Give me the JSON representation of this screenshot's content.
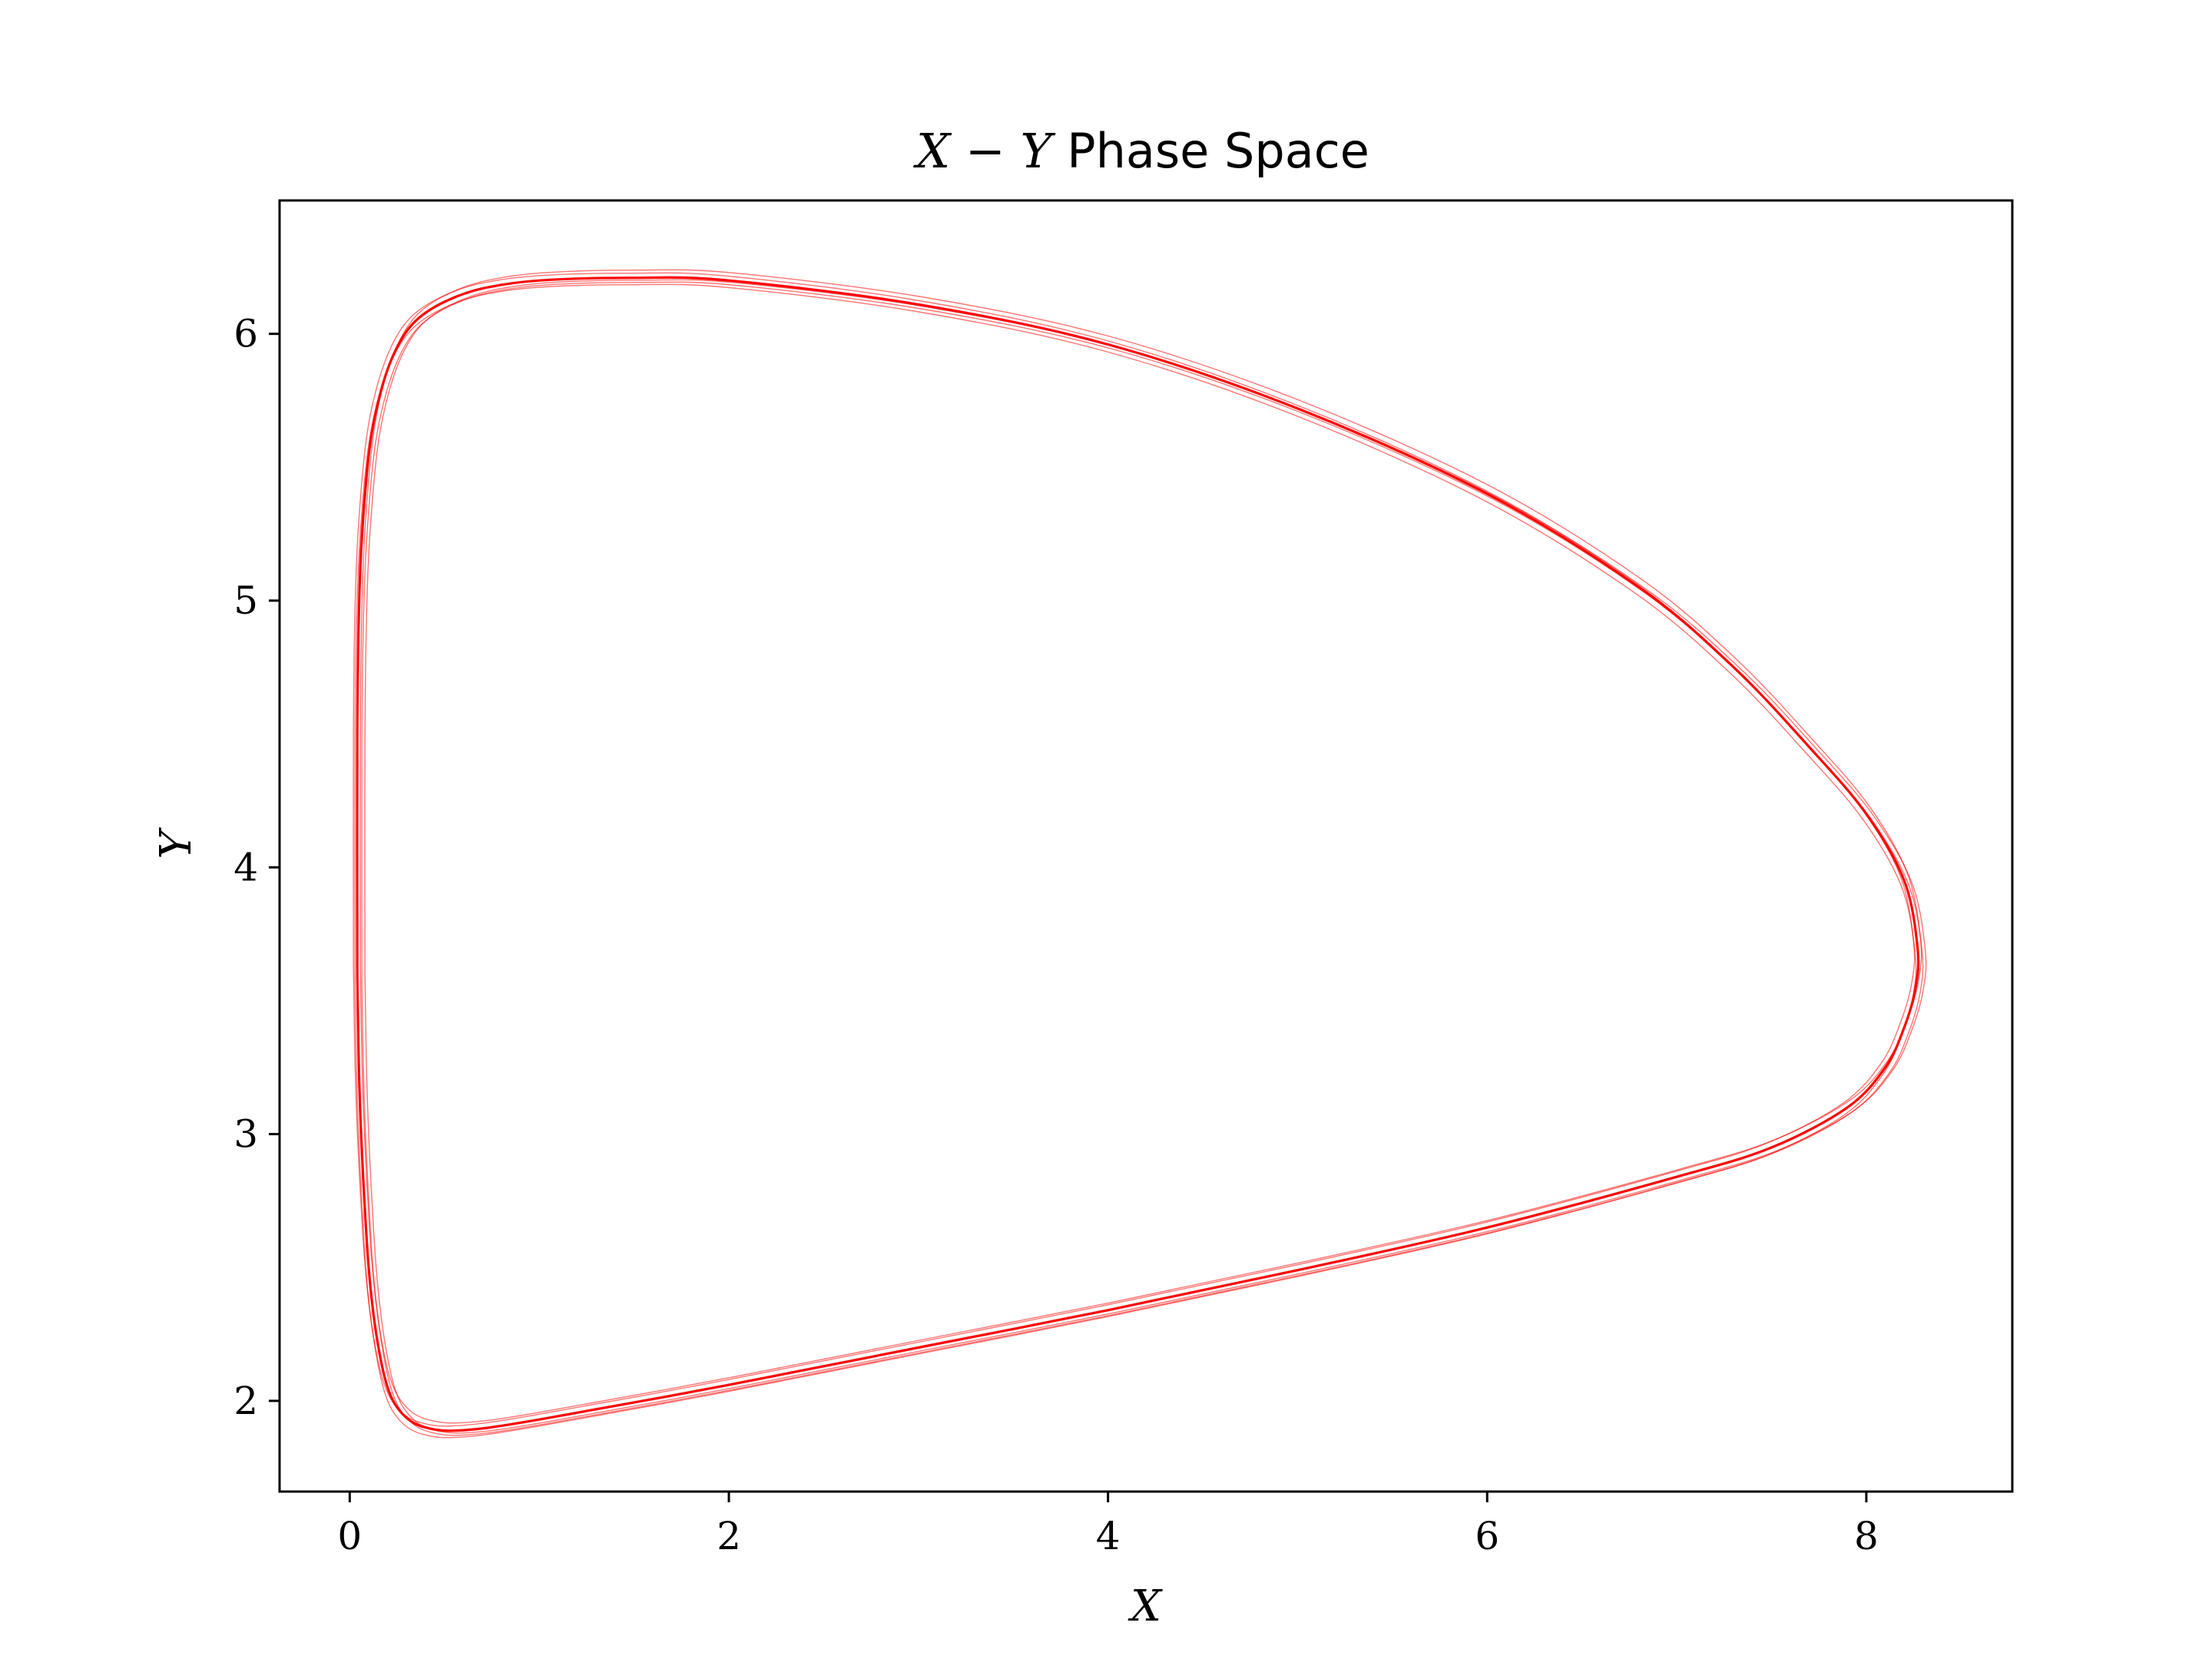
{
  "chart_data": {
    "type": "line",
    "title_math": "X − Y",
    "title_text": " Phase Space",
    "xlabel": "X",
    "ylabel": "Y",
    "xlim": [
      -0.37,
      8.77
    ],
    "ylim": [
      1.66,
      6.5
    ],
    "xticks": [
      0,
      2,
      4,
      6,
      8
    ],
    "yticks": [
      2,
      3,
      4,
      5,
      6
    ],
    "xtick_labels": [
      "0",
      "2",
      "4",
      "6",
      "8"
    ],
    "ytick_labels": [
      "2",
      "3",
      "4",
      "5",
      "6"
    ],
    "grid": false,
    "legend": false,
    "line_color": "#ff0000",
    "series": [
      {
        "x": [
          0.04,
          0.04,
          0.05,
          0.07,
          0.11,
          0.17,
          0.25,
          0.35,
          0.5,
          0.7,
          1.0,
          1.5,
          2.0,
          3.0,
          4.0,
          5.0,
          6.0,
          6.8,
          7.3,
          7.7,
          8.0,
          8.2,
          8.27,
          8.26,
          8.2,
          8.1,
          7.9,
          7.5,
          7.0,
          6.0,
          5.0,
          4.0,
          3.0,
          2.0,
          1.0,
          0.6,
          0.4,
          0.28,
          0.2,
          0.14,
          0.1,
          0.07,
          0.05,
          0.04
        ],
        "y": [
          3.6,
          4.5,
          5.0,
          5.3,
          5.6,
          5.8,
          5.95,
          6.05,
          6.12,
          6.17,
          6.2,
          6.21,
          6.2,
          6.11,
          5.96,
          5.72,
          5.4,
          5.05,
          4.75,
          4.45,
          4.2,
          3.95,
          3.7,
          3.55,
          3.4,
          3.25,
          3.1,
          2.95,
          2.84,
          2.65,
          2.49,
          2.34,
          2.2,
          2.06,
          1.93,
          1.89,
          1.9,
          1.95,
          2.05,
          2.25,
          2.5,
          2.85,
          3.2,
          3.6
        ]
      }
    ]
  }
}
